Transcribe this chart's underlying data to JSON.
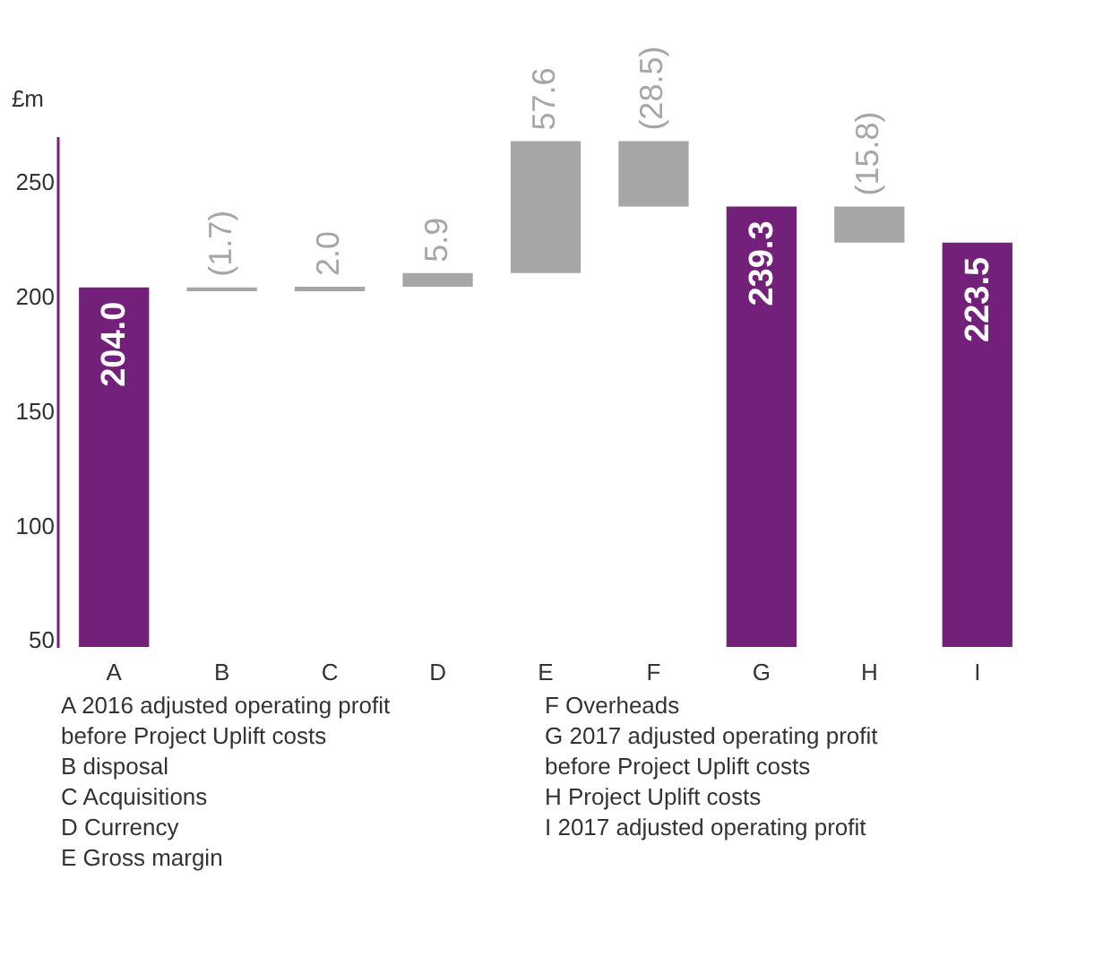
{
  "chart_data": {
    "type": "bar",
    "ylabel": "£m",
    "categories": [
      "A",
      "B",
      "C",
      "D",
      "E",
      "F",
      "G",
      "H",
      "I"
    ],
    "values": [
      204.0,
      -1.7,
      2.0,
      5.9,
      57.6,
      -28.5,
      239.3,
      -15.8,
      223.5
    ],
    "base": [
      null,
      204.0,
      202.3,
      204.3,
      210.2,
      267.8,
      null,
      239.3,
      null
    ],
    "colors": [
      "#73207a",
      "#a6a6a6",
      "#a6a6a6",
      "#a6a6a6",
      "#a6a6a6",
      "#a6a6a6",
      "#73207a",
      "#a6a6a6",
      "#73207a"
    ],
    "value_labels": [
      "204.0",
      "(1.7)",
      "2.0",
      "5.9",
      "57.6",
      "(28.5)",
      "239.3",
      "(15.8)",
      "223.5"
    ],
    "ylim": [
      47,
      270
    ],
    "yticks": [
      50,
      100,
      150,
      200,
      250
    ],
    "grid": false,
    "annotations": [
      "A 2016 adjusted operating profit before Project Uplift costs",
      "B disposal",
      "C Acquisitions",
      "D Currency",
      "E Gross margin",
      "F Overheads",
      "G 2017 adjusted operating profit before Project Uplift costs",
      "H Project Uplift costs",
      "I 2017 adjusted operating profit"
    ]
  }
}
